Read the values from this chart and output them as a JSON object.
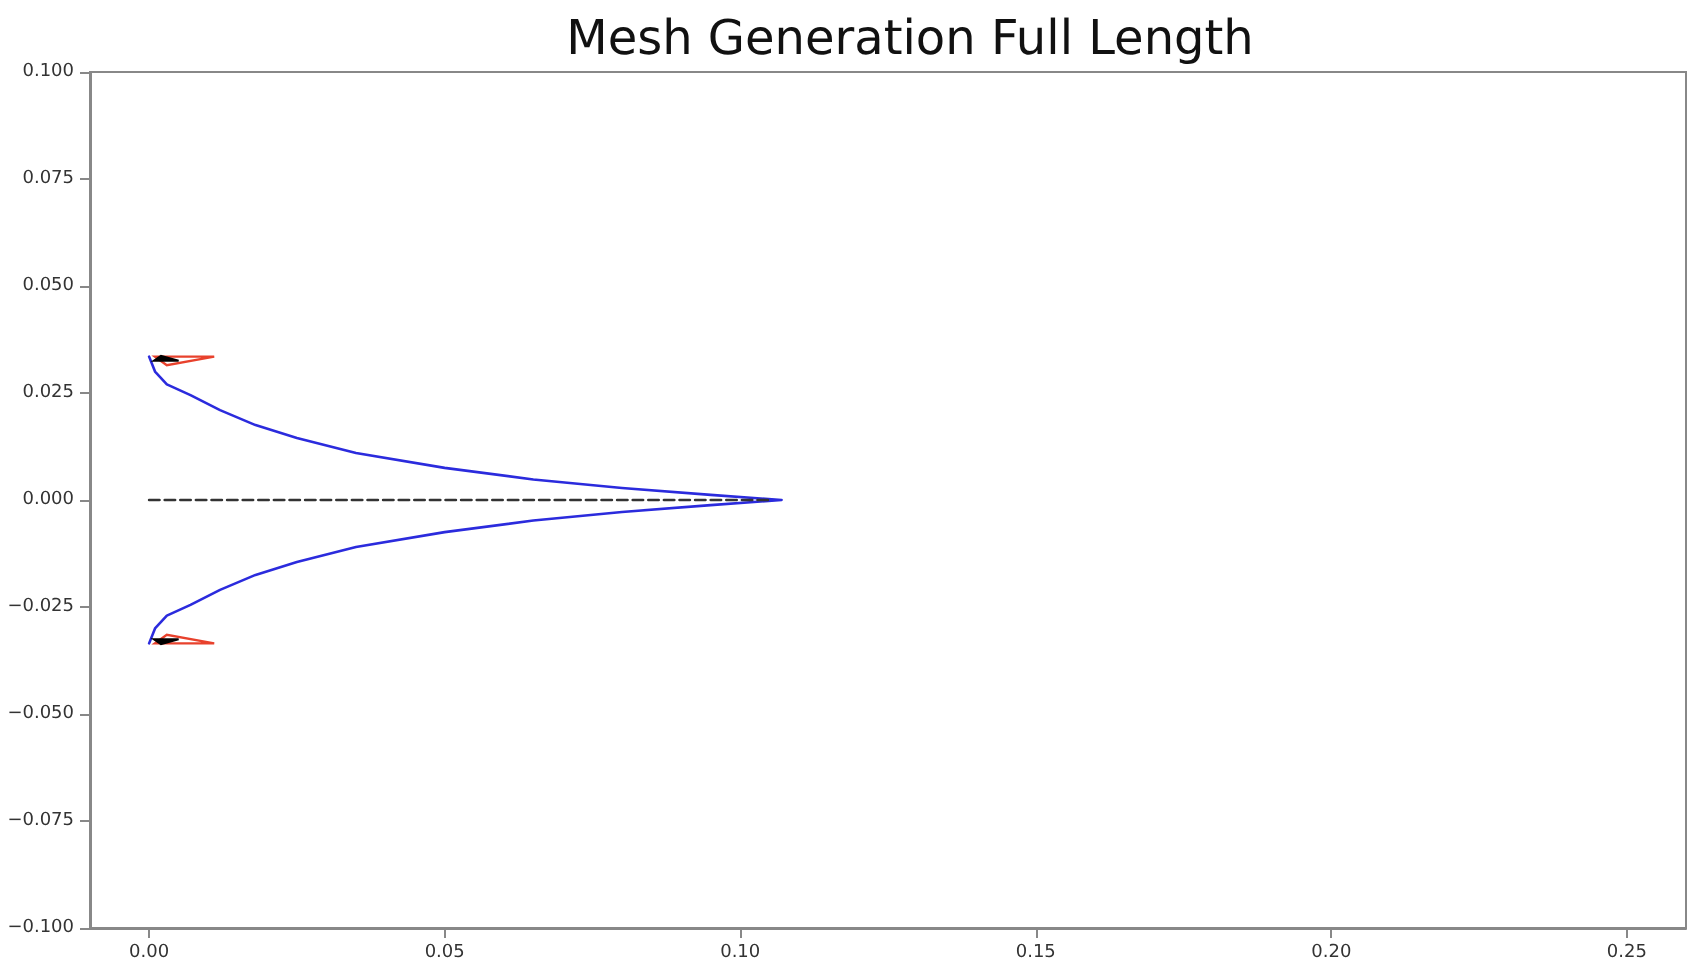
{
  "chart_data": {
    "type": "line",
    "title": "Mesh Generation Full Length",
    "xlim": [
      -0.01,
      0.26
    ],
    "ylim": [
      -0.1,
      0.1
    ],
    "xticks": [
      {
        "value": 0,
        "label": "0.00"
      },
      {
        "value": 0.05,
        "label": "0.05"
      },
      {
        "value": 0.1,
        "label": "0.10"
      },
      {
        "value": 0.15,
        "label": "0.15"
      },
      {
        "value": 0.2,
        "label": "0.20"
      },
      {
        "value": 0.25,
        "label": "0.25"
      }
    ],
    "yticks": [
      {
        "value": -0.1,
        "label": "−0.100"
      },
      {
        "value": -0.075,
        "label": "−0.075"
      },
      {
        "value": -0.05,
        "label": "−0.050"
      },
      {
        "value": -0.025,
        "label": "−0.025"
      },
      {
        "value": 0,
        "label": "0.000"
      },
      {
        "value": 0.025,
        "label": "0.025"
      },
      {
        "value": 0.05,
        "label": "0.050"
      },
      {
        "value": 0.075,
        "label": "0.075"
      },
      {
        "value": 0.1,
        "label": "0.100"
      }
    ],
    "grid": false,
    "marker": "none",
    "series": [
      {
        "color": "#2b2bdd",
        "line_style": "solid",
        "x": [
          0,
          0.001,
          0.003,
          0.007,
          0.012,
          0.018,
          0.025,
          0.035,
          0.05,
          0.065,
          0.08,
          0.095,
          0.107,
          0.095,
          0.08,
          0.065,
          0.05,
          0.035,
          0.025,
          0.018,
          0.012,
          0.007,
          0.003,
          0.001,
          0
        ],
        "values": [
          0.0335,
          0.03,
          0.027,
          0.0245,
          0.021,
          0.0175,
          0.0145,
          0.011,
          0.0075,
          0.0048,
          0.0028,
          0.0012,
          0,
          -0.0012,
          -0.0028,
          -0.0048,
          -0.0075,
          -0.011,
          -0.0145,
          -0.0175,
          -0.021,
          -0.0245,
          -0.027,
          -0.03,
          -0.0335
        ]
      },
      {
        "color": "#333333",
        "line_style": "dashed",
        "x": [
          0,
          0.105
        ],
        "values": [
          0,
          0
        ]
      }
    ]
  }
}
